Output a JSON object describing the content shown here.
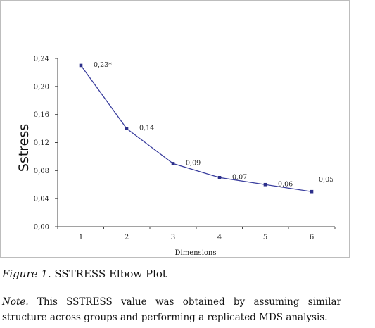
{
  "chart_data": {
    "type": "line",
    "title": "",
    "xlabel": "Dimensions",
    "ylabel": "Sstress",
    "categories": [
      "1",
      "2",
      "3",
      "4",
      "5",
      "6"
    ],
    "series": [
      {
        "values": [
          0.23,
          0.14,
          0.09,
          0.07,
          0.06,
          0.05
        ]
      }
    ],
    "data_labels": [
      "0,23*",
      "0,14",
      "0,09",
      "0,07",
      "0,06",
      "0,05"
    ],
    "y_ticks": [
      "0,00",
      "0,04",
      "0,08",
      "0,12",
      "0,16",
      "0,20",
      "0,24"
    ],
    "ylim": [
      0,
      0.24
    ],
    "grid": false,
    "legend": "none",
    "colors": {
      "line": "#3a3e9e",
      "marker": "#2c2f8a",
      "axis": "#444444"
    }
  },
  "caption": {
    "label": "Figure 1.",
    "text": "SSTRESS Elbow Plot"
  },
  "note": {
    "label": "Note.",
    "text": "This SSTRESS value was obtained by assuming similar structure across groups and performing a replicated MDS analysis."
  }
}
